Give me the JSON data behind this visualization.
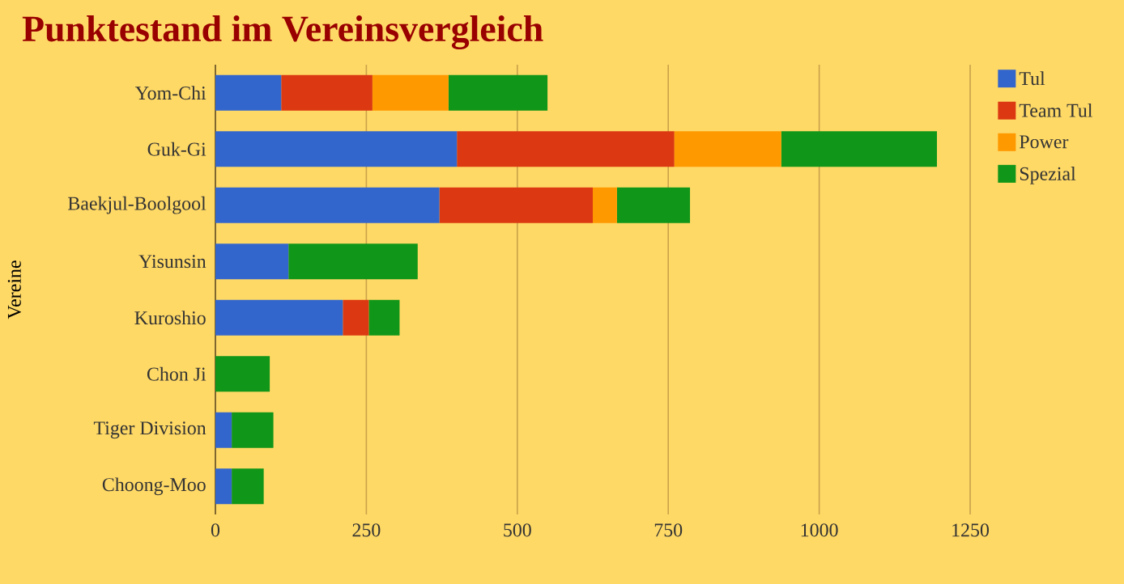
{
  "chart_data": {
    "type": "bar",
    "orientation": "horizontal",
    "stacked": true,
    "title": "Punktestand im Vereinsvergleich",
    "ylabel": "Vereine",
    "categories": [
      "Yom-Chi",
      "Guk-Gi",
      "Baekjul-Boolgool",
      "Yisunsin",
      "Kuroshio",
      "Chon Ji",
      "Tiger Division",
      "Choong-Moo"
    ],
    "series": [
      {
        "name": "Tul",
        "color": "#3366cc",
        "values": [
          109,
          400,
          371,
          121,
          211,
          0,
          27,
          27
        ]
      },
      {
        "name": "Team Tul",
        "color": "#dc3912",
        "values": [
          151,
          360,
          254,
          0,
          43,
          0,
          0,
          0
        ]
      },
      {
        "name": "Power",
        "color": "#ff9900",
        "values": [
          126,
          177,
          40,
          0,
          0,
          0,
          0,
          0
        ]
      },
      {
        "name": "Spezial",
        "color": "#109618",
        "values": [
          164,
          258,
          121,
          214,
          51,
          90,
          69,
          53
        ]
      }
    ],
    "xlim": [
      0,
      1250
    ],
    "xticks": [
      0,
      250,
      500,
      750,
      1000,
      1250
    ],
    "grid": "x",
    "legend": "right"
  }
}
